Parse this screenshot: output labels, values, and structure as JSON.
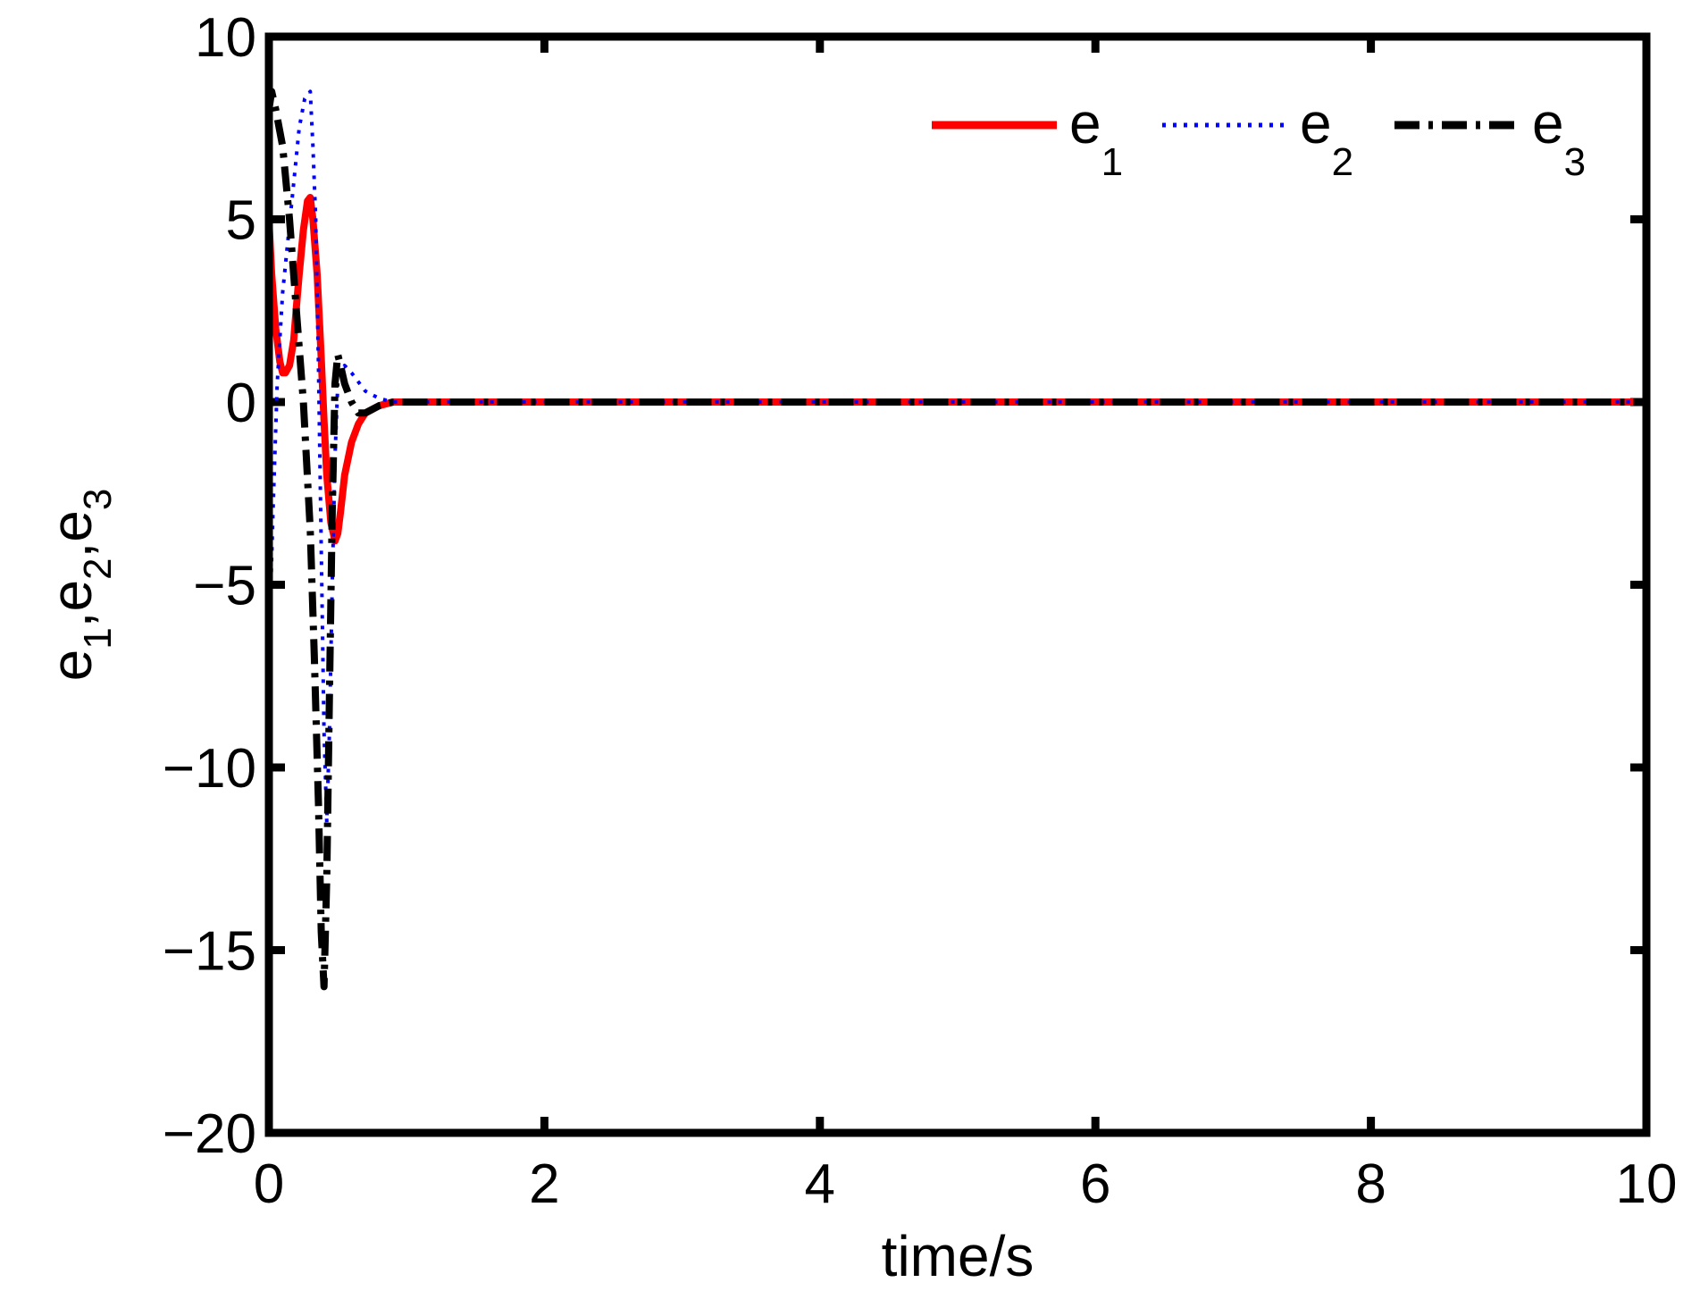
{
  "chart_data": {
    "type": "line",
    "xlabel": "time/s",
    "ylabel": {
      "base": "e",
      "subs": [
        "1",
        "2",
        "3"
      ]
    },
    "xlim": [
      0,
      10
    ],
    "ylim": [
      -20,
      10
    ],
    "xticks": [
      0,
      2,
      4,
      6,
      8,
      10
    ],
    "yticks": [
      -20,
      -15,
      -10,
      -5,
      0,
      5,
      10
    ],
    "xtick_labels": [
      "0",
      "2",
      "4",
      "6",
      "8",
      "10"
    ],
    "ytick_labels": [
      "−20",
      "−15",
      "−10",
      "−5",
      "0",
      "5",
      "10"
    ],
    "grid": false,
    "legend_position": "top-right",
    "legend_orientation": "horizontal",
    "series": [
      {
        "name": "e1",
        "label_base": "e",
        "label_sub": "1",
        "color": "#ff0000",
        "style": "solid",
        "x": [
          0,
          0.02,
          0.05,
          0.08,
          0.1,
          0.12,
          0.15,
          0.18,
          0.2,
          0.22,
          0.25,
          0.28,
          0.3,
          0.32,
          0.35,
          0.38,
          0.4,
          0.42,
          0.45,
          0.48,
          0.5,
          0.52,
          0.55,
          0.6,
          0.65,
          0.7,
          0.8,
          0.9,
          1.0,
          1.1,
          1.2,
          10
        ],
        "y": [
          5.0,
          3.5,
          2.0,
          1.1,
          0.8,
          0.8,
          1.0,
          1.7,
          2.6,
          3.5,
          4.7,
          5.5,
          5.6,
          5.0,
          3.5,
          1.2,
          -0.5,
          -2.0,
          -3.3,
          -3.8,
          -3.6,
          -3.0,
          -2.0,
          -1.1,
          -0.6,
          -0.3,
          -0.1,
          0.0,
          0.0,
          0.0,
          0.0,
          0.0
        ]
      },
      {
        "name": "e2",
        "label_base": "e",
        "label_sub": "2",
        "color": "#0000ff",
        "style": "dotted",
        "x": [
          0,
          0.03,
          0.06,
          0.1,
          0.14,
          0.18,
          0.22,
          0.26,
          0.3,
          0.32,
          0.34,
          0.36,
          0.38,
          0.4,
          0.42,
          0.44,
          0.46,
          0.48,
          0.5,
          0.55,
          0.6,
          0.7,
          0.8,
          0.9,
          1.0,
          1.1,
          10
        ],
        "y": [
          -7.0,
          -3.0,
          0.5,
          3.0,
          4.5,
          6.0,
          7.5,
          8.3,
          8.5,
          7.0,
          5.0,
          1.0,
          -4.0,
          -9.0,
          -11.5,
          -9.0,
          -5.0,
          -1.5,
          0.5,
          1.0,
          0.8,
          0.3,
          0.1,
          0.0,
          0.0,
          0.0,
          0.0
        ]
      },
      {
        "name": "e3",
        "label_base": "e",
        "label_sub": "3",
        "color": "#000000",
        "style": "dashdot",
        "x": [
          0,
          0.02,
          0.05,
          0.1,
          0.15,
          0.2,
          0.25,
          0.3,
          0.33,
          0.36,
          0.38,
          0.4,
          0.42,
          0.44,
          0.46,
          0.48,
          0.5,
          0.52,
          0.55,
          0.6,
          0.65,
          0.7,
          0.8,
          0.9,
          1.0,
          1.1,
          10
        ],
        "y": [
          8.0,
          8.5,
          8.0,
          7.0,
          5.0,
          2.5,
          0.0,
          -3.5,
          -7.0,
          -11.0,
          -14.5,
          -16.0,
          -13.0,
          -8.0,
          -3.0,
          0.5,
          1.3,
          1.0,
          0.5,
          0.0,
          -0.3,
          -0.3,
          -0.1,
          0.0,
          0.0,
          0.0,
          0.0
        ]
      }
    ]
  }
}
